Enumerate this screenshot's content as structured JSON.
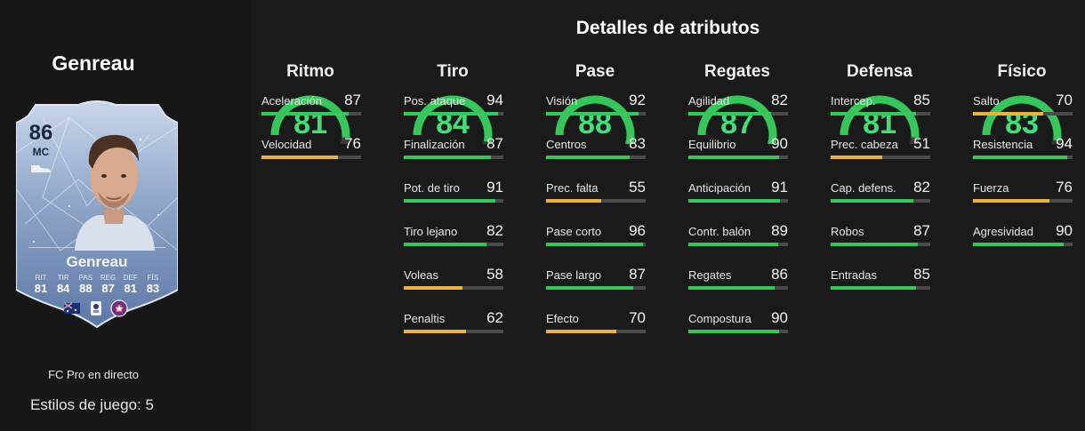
{
  "player": {
    "name": "Genreau",
    "card_name": "Genreau",
    "rating": "86",
    "position": "MC",
    "programme": "FC Pro en directo",
    "playstyles_label": "Estilos de juego: 5",
    "card_stats": [
      {
        "label": "RIT",
        "value": "81"
      },
      {
        "label": "TIR",
        "value": "84"
      },
      {
        "label": "PAS",
        "value": "88"
      },
      {
        "label": "REG",
        "value": "87"
      },
      {
        "label": "DEF",
        "value": "81"
      },
      {
        "label": "FÍS",
        "value": "83"
      }
    ]
  },
  "panel_title": "Detalles de atributos",
  "colors": {
    "high": "#34c759",
    "mid": "#e8b53a",
    "track": "#4a4a4a",
    "gauge_rest": "#3d3d3d"
  },
  "categories": [
    {
      "name": "Ritmo",
      "value": 81,
      "attributes": [
        {
          "label": "Aceleración",
          "value": 87
        },
        {
          "label": "Velocidad",
          "value": 76
        }
      ]
    },
    {
      "name": "Tiro",
      "value": 84,
      "attributes": [
        {
          "label": "Pos. ataque",
          "value": 94
        },
        {
          "label": "Finalización",
          "value": 87
        },
        {
          "label": "Pot. de tiro",
          "value": 91
        },
        {
          "label": "Tiro lejano",
          "value": 82
        },
        {
          "label": "Voleas",
          "value": 58
        },
        {
          "label": "Penaltis",
          "value": 62
        }
      ]
    },
    {
      "name": "Pase",
      "value": 88,
      "attributes": [
        {
          "label": "Visión",
          "value": 92
        },
        {
          "label": "Centros",
          "value": 83
        },
        {
          "label": "Prec. falta",
          "value": 55
        },
        {
          "label": "Pase corto",
          "value": 96
        },
        {
          "label": "Pase largo",
          "value": 87
        },
        {
          "label": "Efecto",
          "value": 70
        }
      ]
    },
    {
      "name": "Regates",
      "value": 87,
      "attributes": [
        {
          "label": "Agilidad",
          "value": 82
        },
        {
          "label": "Equilibrio",
          "value": 90
        },
        {
          "label": "Anticipación",
          "value": 91
        },
        {
          "label": "Contr. balón",
          "value": 89
        },
        {
          "label": "Regates",
          "value": 86
        },
        {
          "label": "Compostura",
          "value": 90
        }
      ]
    },
    {
      "name": "Defensa",
      "value": 81,
      "attributes": [
        {
          "label": "Intercep.",
          "value": 85
        },
        {
          "label": "Prec. cabeza",
          "value": 51
        },
        {
          "label": "Cap. defens.",
          "value": 82
        },
        {
          "label": "Robos",
          "value": 87
        },
        {
          "label": "Entradas",
          "value": 85
        }
      ]
    },
    {
      "name": "Físico",
      "value": 83,
      "attributes": [
        {
          "label": "Salto",
          "value": 70
        },
        {
          "label": "Resistencia",
          "value": 94
        },
        {
          "label": "Fuerza",
          "value": 76
        },
        {
          "label": "Agresividad",
          "value": 90
        }
      ]
    }
  ]
}
